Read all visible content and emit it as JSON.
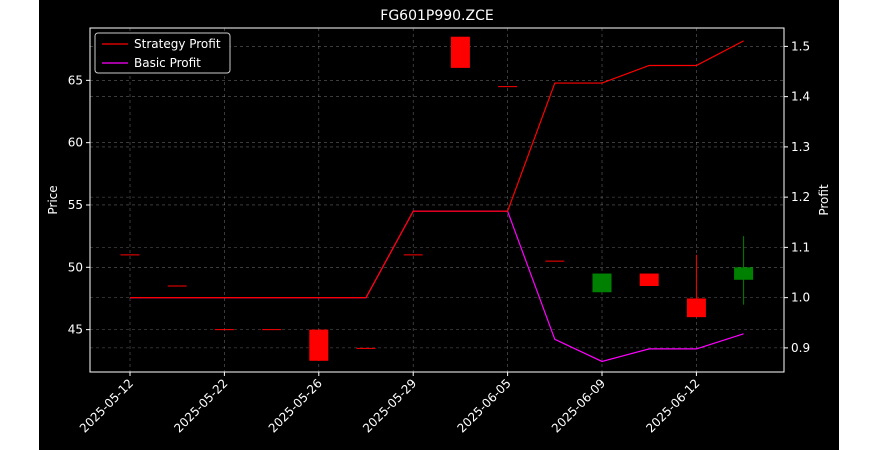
{
  "chart_data": {
    "type": "candlestick",
    "title": "FG601P990.ZCE",
    "ylabel_left": "Price",
    "ylabel_right": "Profit",
    "ylim_left": [
      41.6,
      69.2
    ],
    "ylim_right": [
      0.852,
      1.5366
    ],
    "left_ticks": [
      45,
      50,
      55,
      60,
      65
    ],
    "right_ticks": [
      0.9,
      1.0,
      1.1,
      1.2,
      1.3,
      1.4,
      1.5
    ],
    "x_tick_labels": [
      "2025-05-12",
      "2025-05-22",
      "2025-05-26",
      "2025-05-29",
      "2025-06-05",
      "2025-06-09",
      "2025-06-12"
    ],
    "x_tick_positions": [
      0,
      2,
      4,
      6,
      8,
      10,
      12
    ],
    "grid": true,
    "legend_position": "upper-left",
    "colors": {
      "up": "#008000",
      "down": "#ff0000",
      "strategy": "#ff0000",
      "basic": "#ff00ff",
      "background": "#000000",
      "axes": "#ffffff"
    },
    "candles": [
      {
        "i": 0,
        "open": 51.0,
        "high": 51.0,
        "low": 51.0,
        "close": 51.0
      },
      {
        "i": 1,
        "open": 48.5,
        "high": 48.5,
        "low": 48.5,
        "close": 48.5
      },
      {
        "i": 2,
        "open": 45.0,
        "high": 45.0,
        "low": 45.0,
        "close": 45.0
      },
      {
        "i": 3,
        "open": 45.0,
        "high": 45.0,
        "low": 45.0,
        "close": 45.0
      },
      {
        "i": 4,
        "open": 45.0,
        "high": 45.0,
        "low": 42.5,
        "close": 42.5
      },
      {
        "i": 5,
        "open": 43.5,
        "high": 43.5,
        "low": 43.5,
        "close": 43.5
      },
      {
        "i": 6,
        "open": 51.0,
        "high": 51.0,
        "low": 51.0,
        "close": 51.0
      },
      {
        "i": 7,
        "open": 68.5,
        "high": 68.5,
        "low": 66.0,
        "close": 66.0
      },
      {
        "i": 8,
        "open": 64.5,
        "high": 64.5,
        "low": 64.5,
        "close": 64.5
      },
      {
        "i": 9,
        "open": 50.5,
        "high": 50.5,
        "low": 50.5,
        "close": 50.5
      },
      {
        "i": 10,
        "open": 48.0,
        "high": 49.5,
        "low": 48.0,
        "close": 49.5
      },
      {
        "i": 11,
        "open": 49.5,
        "high": 49.5,
        "low": 48.5,
        "close": 48.5
      },
      {
        "i": 12,
        "open": 47.5,
        "high": 51.0,
        "low": 46.0,
        "close": 46.0
      },
      {
        "i": 13,
        "open": 49.0,
        "high": 52.5,
        "low": 47.0,
        "close": 50.0
      }
    ],
    "series": [
      {
        "name": "Strategy Profit",
        "x": [
          0,
          1,
          2,
          3,
          4,
          5,
          6,
          7,
          8,
          9,
          10,
          11,
          12,
          13
        ],
        "values": [
          1.0,
          1.0,
          1.0,
          1.0,
          1.0,
          1.0,
          1.172,
          1.172,
          1.172,
          1.427,
          1.427,
          1.462,
          1.462,
          1.511
        ]
      },
      {
        "name": "Basic Profit",
        "x": [
          0,
          1,
          2,
          3,
          4,
          5,
          6,
          7,
          8,
          9,
          10,
          11,
          12,
          13
        ],
        "values": [
          1.0,
          1.0,
          1.0,
          1.0,
          1.0,
          1.0,
          1.172,
          1.172,
          1.172,
          0.917,
          0.873,
          0.898,
          0.898,
          0.928
        ]
      }
    ]
  }
}
